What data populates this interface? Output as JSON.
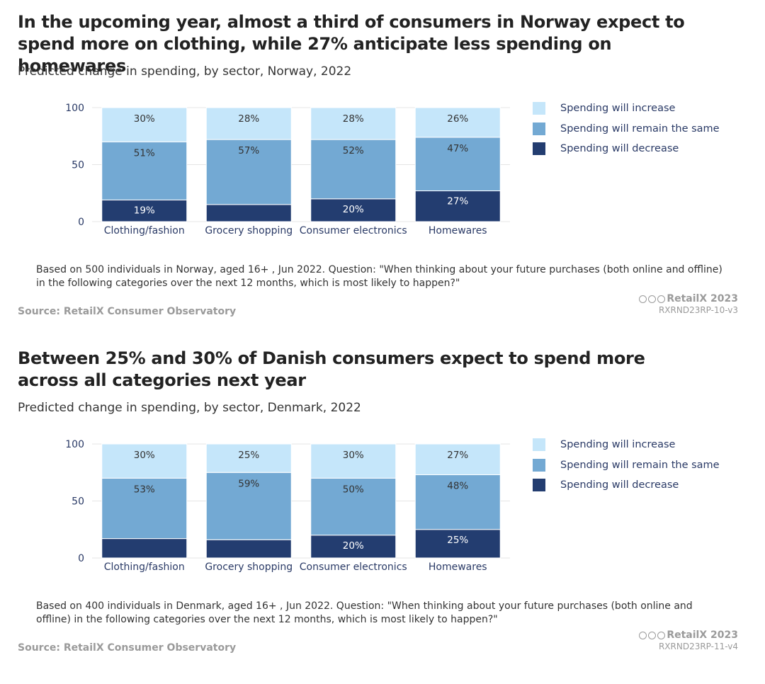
{
  "colors": {
    "increase": "#c5e6fa",
    "same": "#73a9d3",
    "decrease": "#233d70",
    "gridline": "#e5e5e5",
    "axis_text": "#2a3a66"
  },
  "chart_data": [
    {
      "type": "bar",
      "stacked": true,
      "title": "In the upcoming year, almost a third of consumers in Norway expect to spend more on clothing, while 27% anticipate less spending on homewares",
      "subtitle": "Predicted change in spending, by sector, Norway, 2022",
      "categories": [
        "Clothing/fashion",
        "Grocery shopping",
        "Consumer electronics",
        "Homewares"
      ],
      "ylim": [
        0,
        100
      ],
      "yticks": [
        "0",
        "50",
        "100"
      ],
      "series": [
        {
          "name": "Spending will decrease",
          "values": [
            19,
            15,
            20,
            27
          ],
          "labels": [
            "19%",
            "",
            "20%",
            "27%"
          ]
        },
        {
          "name": "Spending will remain the same",
          "values": [
            51,
            57,
            52,
            47
          ],
          "labels": [
            "51%",
            "57%",
            "52%",
            "47%"
          ]
        },
        {
          "name": "Spending will increase",
          "values": [
            30,
            28,
            28,
            26
          ],
          "labels": [
            "30%",
            "28%",
            "28%",
            "26%"
          ]
        }
      ],
      "legend": [
        "Spending will increase",
        "Spending will remain the same",
        "Spending will decrease"
      ],
      "note": "Based on 500 individuals in Norway, aged 16+ , Jun 2022. Question: \"When thinking about your future purchases (both online and offline) in the following categories over the next 12 months, which is most likely to happen?\"",
      "source": "Source: RetailX Consumer Observatory",
      "brand": "RetailX 2023",
      "code": "RXRND23RP-10-v3"
    },
    {
      "type": "bar",
      "stacked": true,
      "title": "Between 25% and 30% of Danish consumers expect to spend more across all categories next year",
      "subtitle": "Predicted change in spending, by sector, Denmark, 2022",
      "categories": [
        "Clothing/fashion",
        "Grocery shopping",
        "Consumer electronics",
        "Homewares"
      ],
      "ylim": [
        0,
        100
      ],
      "yticks": [
        "0",
        "50",
        "100"
      ],
      "series": [
        {
          "name": "Spending will decrease",
          "values": [
            17,
            16,
            20,
            25
          ],
          "labels": [
            "",
            "",
            "20%",
            "25%"
          ]
        },
        {
          "name": "Spending will remain the same",
          "values": [
            53,
            59,
            50,
            48
          ],
          "labels": [
            "53%",
            "59%",
            "50%",
            "48%"
          ]
        },
        {
          "name": "Spending will increase",
          "values": [
            30,
            25,
            30,
            27
          ],
          "labels": [
            "30%",
            "25%",
            "30%",
            "27%"
          ]
        }
      ],
      "legend": [
        "Spending will increase",
        "Spending will remain the same",
        "Spending will decrease"
      ],
      "note": "Based on 400 individuals in Denmark, aged 16+ , Jun 2022. Question: \"When thinking about your future purchases (both online and offline) in the following categories over the next 12 months, which is most likely to happen?\"",
      "source": "Source: RetailX Consumer Observatory",
      "brand": "RetailX 2023",
      "code": "RXRND23RP-11-v4"
    }
  ]
}
